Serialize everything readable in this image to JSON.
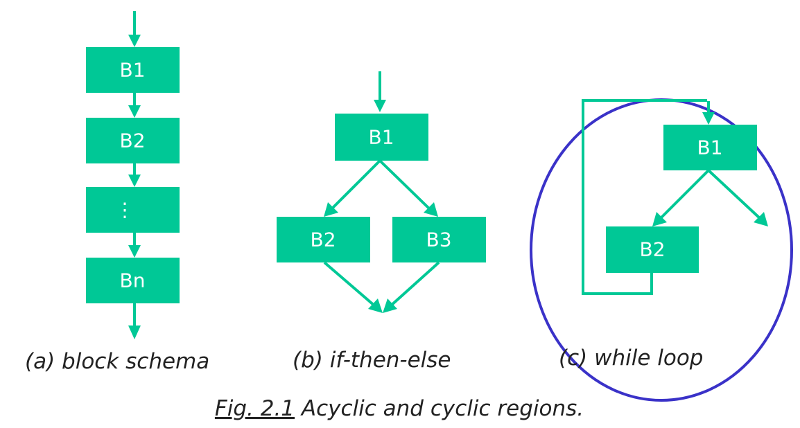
{
  "colors": {
    "block_fill": "#00c896",
    "edge": "#00c896",
    "oval": "#3a32c8",
    "text": "#ffffff"
  },
  "diagram_a": {
    "caption": "(a) block schema",
    "blocks": [
      "B1",
      "B2",
      "⋮",
      "Bn"
    ]
  },
  "diagram_b": {
    "caption": "(b) if-then-else",
    "blocks": [
      "B1",
      "B2",
      "B3"
    ]
  },
  "diagram_c": {
    "caption": "(c) while loop",
    "blocks": [
      "B1",
      "B2"
    ]
  },
  "figure": {
    "label": "Fig. 2.1",
    "title": " Acyclic and cyclic regions."
  }
}
